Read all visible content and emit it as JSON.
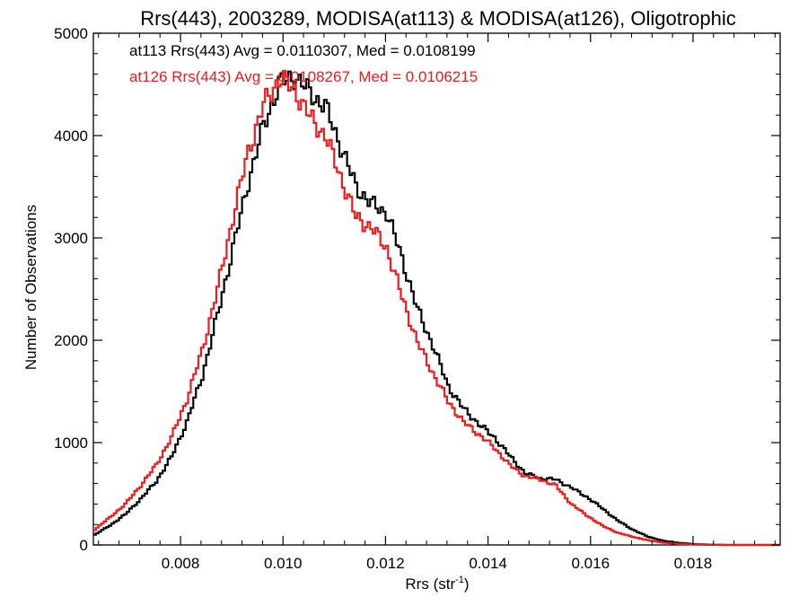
{
  "chart_data": {
    "type": "line",
    "title": "Rrs(443), 2003289, MODISA(at113) & MODISA(at126), Oligotrophic",
    "xlabel_main": "Rrs (str",
    "xlabel_sup": "-1",
    "xlabel_close": ")",
    "ylabel": "Number of Observations",
    "xlim": [
      0.0063,
      0.0197
    ],
    "ylim": [
      0,
      5000
    ],
    "xticks": [
      0.008,
      0.01,
      0.012,
      0.014,
      0.016,
      0.018
    ],
    "xtick_labels": [
      "0.008",
      "0.010",
      "0.012",
      "0.014",
      "0.016",
      "0.018"
    ],
    "yticks": [
      0,
      1000,
      2000,
      3000,
      4000,
      5000
    ],
    "ytick_labels": [
      "0",
      "1000",
      "2000",
      "3000",
      "4000",
      "5000"
    ],
    "grid": false,
    "step": true,
    "annotations": [
      "at113 Rrs(443) Avg = 0.0110307, Med = 0.0108199",
      "at126 Rrs(443) Avg = 0.0108267, Med = 0.0106215"
    ],
    "x": [
      0.0063,
      0.0066,
      0.0069,
      0.0072,
      0.0075,
      0.0078,
      0.0081,
      0.0084,
      0.0087,
      0.009,
      0.0093,
      0.0096,
      0.0099,
      0.0102,
      0.0105,
      0.0108,
      0.0111,
      0.0114,
      0.0117,
      0.012,
      0.0123,
      0.0126,
      0.0129,
      0.0132,
      0.0135,
      0.0138,
      0.0141,
      0.0144,
      0.0147,
      0.015,
      0.0153,
      0.0156,
      0.0159,
      0.0162,
      0.0165,
      0.0168,
      0.0171,
      0.0174,
      0.0177,
      0.018,
      0.0183,
      0.0186,
      0.0189,
      0.0192,
      0.0195,
      0.0197
    ],
    "series": [
      {
        "name": "at113",
        "color": "#000000",
        "values": [
          100,
          190,
          300,
          450,
          620,
          860,
          1200,
          1650,
          2250,
          2900,
          3550,
          4100,
          4500,
          4580,
          4420,
          4280,
          3900,
          3500,
          3330,
          3250,
          2800,
          2300,
          1950,
          1550,
          1330,
          1180,
          1050,
          870,
          700,
          650,
          640,
          560,
          470,
          360,
          240,
          150,
          80,
          40,
          20,
          8,
          3,
          0,
          0,
          0,
          0,
          0
        ]
      },
      {
        "name": "at126",
        "color": "#ee1c1c",
        "values": [
          150,
          270,
          400,
          580,
          780,
          1050,
          1420,
          1900,
          2500,
          3200,
          3850,
          4300,
          4560,
          4450,
          4180,
          4000,
          3600,
          3200,
          3100,
          2900,
          2420,
          1980,
          1680,
          1400,
          1200,
          1080,
          950,
          780,
          670,
          640,
          580,
          400,
          290,
          190,
          120,
          80,
          45,
          22,
          10,
          4,
          1,
          0,
          0,
          0,
          0,
          0
        ]
      }
    ]
  }
}
